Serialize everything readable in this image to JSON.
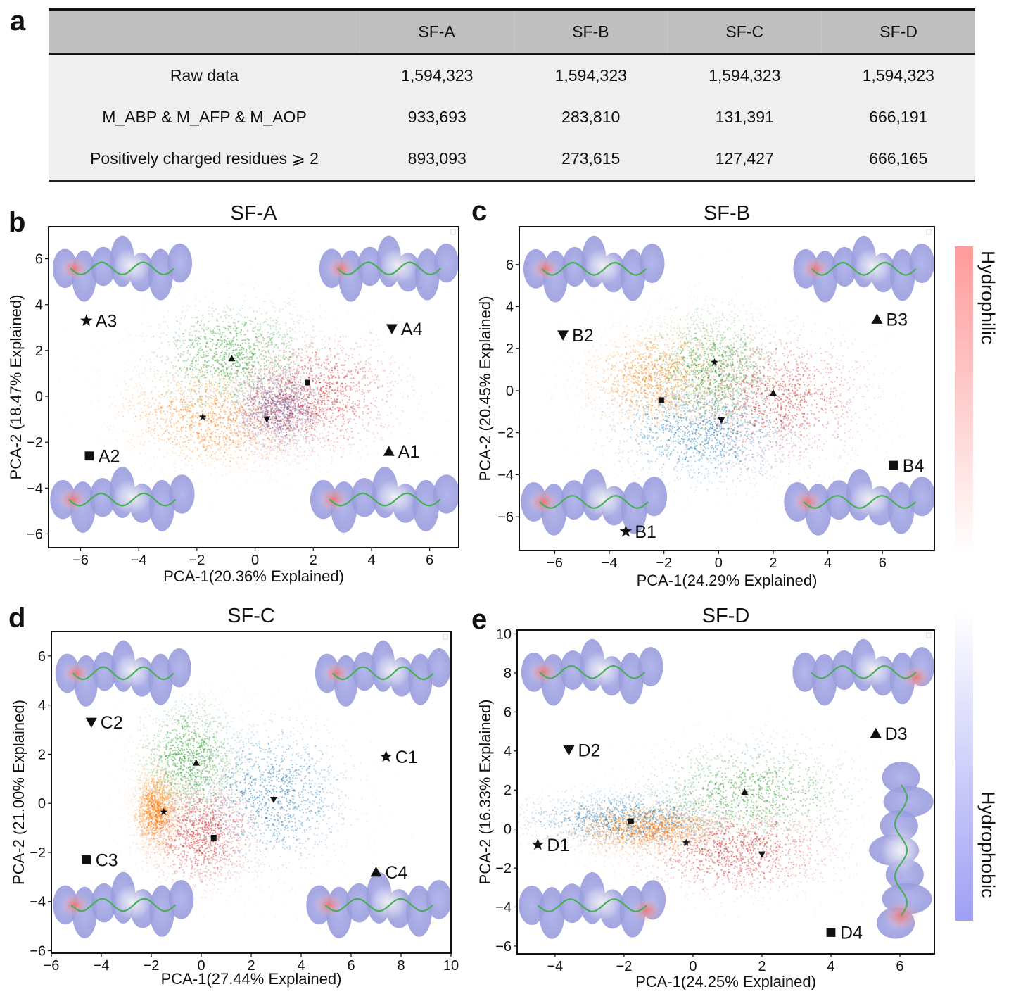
{
  "panel_letters": {
    "a": "a",
    "b": "b",
    "c": "c",
    "d": "d",
    "e": "e"
  },
  "table": {
    "columns": [
      "",
      "SF-A",
      "SF-B",
      "SF-C",
      "SF-D"
    ],
    "rows": [
      {
        "label": "Raw data",
        "values": [
          "1,594,323",
          "1,594,323",
          "1,594,323",
          "1,594,323"
        ]
      },
      {
        "label": "M_ABP & M_AFP & M_AOP",
        "values": [
          "933,693",
          "283,810",
          "131,391",
          "666,191"
        ]
      },
      {
        "label": "Positively charged residues ⩾ 2",
        "values": [
          "893,093",
          "273,615",
          "127,427",
          "666,165"
        ]
      }
    ]
  },
  "colorbar": {
    "top_label": "Hydrophilic",
    "bottom_label": "Hydrophobic",
    "hydrophilic_color": "#ff9a9a",
    "hydrophobic_color": "#9f9ff5"
  },
  "cluster_colors": {
    "blue": "#1f77b4",
    "orange": "#ff7f0e",
    "green": "#2ca02c",
    "red": "#d62728",
    "purple": "#7a4a8a"
  },
  "surface_colors": {
    "hydrophobic": "#8c8fd6",
    "neutral": "#f2f2f2",
    "hydrophilic": "#ef6b6b",
    "backbone": "#3aa84a"
  },
  "chart_data": [
    {
      "id": "b",
      "type": "scatter",
      "title": "SF-A",
      "xlabel": "PCA-1(20.36% Explained)",
      "ylabel": "PCA-2 (18.47% Explained)",
      "xlim": [
        -7.1,
        7.0
      ],
      "ylim": [
        -6.6,
        7.4
      ],
      "xticks": [
        -6,
        -4,
        -2,
        0,
        2,
        4,
        6
      ],
      "yticks": [
        -6,
        -4,
        -2,
        0,
        2,
        4,
        6
      ],
      "grid": false,
      "clusters": [
        {
          "color": "green",
          "center": [
            -0.8,
            1.7
          ],
          "spread": [
            1.6,
            1.3
          ],
          "angle": 0.2
        },
        {
          "color": "orange",
          "center": [
            -1.6,
            -1.0
          ],
          "spread": [
            1.7,
            1.2
          ],
          "angle": -0.25
        },
        {
          "color": "purple",
          "center": [
            0.8,
            -0.6
          ],
          "spread": [
            0.9,
            1.0
          ],
          "angle": 0
        },
        {
          "color": "red",
          "center": [
            2.1,
            0.1
          ],
          "spread": [
            1.6,
            1.4
          ],
          "angle": 0.1
        }
      ],
      "centroids": [
        {
          "marker": "triangle-up",
          "x": -0.8,
          "y": 1.65
        },
        {
          "marker": "square",
          "x": 1.8,
          "y": 0.6
        },
        {
          "marker": "star",
          "x": -1.8,
          "y": -0.9
        },
        {
          "marker": "triangle-down",
          "x": 0.4,
          "y": -1.0
        }
      ],
      "annotations": [
        {
          "label": "A3",
          "marker": "star",
          "x": -5.8,
          "y": 3.3,
          "structure_corner": "top-left"
        },
        {
          "label": "A4",
          "marker": "triangle-down",
          "x": 4.7,
          "y": 2.95,
          "structure_corner": "top-right"
        },
        {
          "label": "A2",
          "marker": "square",
          "x": -5.7,
          "y": -2.6,
          "structure_corner": "bottom-left"
        },
        {
          "label": "A1",
          "marker": "triangle-up",
          "x": 4.6,
          "y": -2.4,
          "structure_corner": "bottom-right"
        }
      ]
    },
    {
      "id": "c",
      "type": "scatter",
      "title": "SF-B",
      "xlabel": "PCA-1(24.29% Explained)",
      "ylabel": "PCA-2 (20.45% Explained)",
      "xlim": [
        -7.3,
        7.9
      ],
      "ylim": [
        -7.6,
        7.8
      ],
      "xticks": [
        -6,
        -4,
        -2,
        0,
        2,
        4,
        6
      ],
      "yticks": [
        -6,
        -4,
        -2,
        0,
        2,
        4,
        6
      ],
      "grid": false,
      "clusters": [
        {
          "color": "orange",
          "center": [
            -2.3,
            0.6
          ],
          "spread": [
            1.4,
            1.4
          ],
          "angle": 0
        },
        {
          "color": "green",
          "center": [
            -0.2,
            1.0
          ],
          "spread": [
            1.3,
            1.6
          ],
          "angle": 0
        },
        {
          "color": "red",
          "center": [
            2.2,
            -0.4
          ],
          "spread": [
            1.8,
            1.7
          ],
          "angle": 0.15
        },
        {
          "color": "blue",
          "center": [
            -0.6,
            -2.0
          ],
          "spread": [
            1.9,
            1.3
          ],
          "angle": -0.2
        }
      ],
      "centroids": [
        {
          "marker": "star",
          "x": -0.15,
          "y": 1.35
        },
        {
          "marker": "triangle-up",
          "x": 2.0,
          "y": -0.1
        },
        {
          "marker": "square",
          "x": -2.1,
          "y": -0.45
        },
        {
          "marker": "triangle-down",
          "x": 0.1,
          "y": -1.4
        }
      ],
      "annotations": [
        {
          "label": "B2",
          "marker": "triangle-down",
          "x": -5.7,
          "y": 2.65,
          "structure_corner": "top-left"
        },
        {
          "label": "B3",
          "marker": "triangle-up",
          "x": 5.8,
          "y": 3.4,
          "structure_corner": "top-right"
        },
        {
          "label": "B1",
          "marker": "star",
          "x": -3.4,
          "y": -6.7,
          "structure_corner": "bottom-left"
        },
        {
          "label": "B4",
          "marker": "square",
          "x": 6.4,
          "y": -3.55,
          "structure_corner": "bottom-right"
        }
      ]
    },
    {
      "id": "d",
      "type": "scatter",
      "title": "SF-C",
      "xlabel": "PCA-1(27.44% Explained)",
      "ylabel": "PCA-2 (21.00% Explained)",
      "xlim": [
        -6,
        10
      ],
      "ylim": [
        -6.1,
        7.0
      ],
      "xticks": [
        -6,
        -4,
        -2,
        0,
        2,
        4,
        6,
        8,
        10
      ],
      "yticks": [
        -6,
        -4,
        -2,
        0,
        2,
        4,
        6
      ],
      "grid": false,
      "clusters": [
        {
          "color": "green",
          "center": [
            -0.5,
            1.8
          ],
          "spread": [
            1.1,
            1.3
          ],
          "angle": 0
        },
        {
          "color": "blue",
          "center": [
            2.8,
            0.3
          ],
          "spread": [
            1.7,
            1.6
          ],
          "angle": 0
        },
        {
          "color": "orange",
          "center": [
            -1.8,
            -0.3
          ],
          "spread": [
            0.5,
            0.9
          ],
          "angle": 0
        },
        {
          "color": "red",
          "center": [
            0.0,
            -1.2
          ],
          "spread": [
            1.2,
            1.2
          ],
          "angle": 0
        }
      ],
      "centroids": [
        {
          "marker": "triangle-up",
          "x": -0.2,
          "y": 1.65
        },
        {
          "marker": "triangle-down",
          "x": 2.9,
          "y": 0.15
        },
        {
          "marker": "star",
          "x": -1.5,
          "y": -0.35
        },
        {
          "marker": "square",
          "x": 0.5,
          "y": -1.4
        }
      ],
      "annotations": [
        {
          "label": "C2",
          "marker": "triangle-down",
          "x": -4.4,
          "y": 3.3,
          "structure_corner": "top-left"
        },
        {
          "label": "C1",
          "marker": "star",
          "x": 7.4,
          "y": 1.9,
          "structure_corner": "top-right"
        },
        {
          "label": "C3",
          "marker": "square",
          "x": -4.6,
          "y": -2.3,
          "structure_corner": "bottom-left"
        },
        {
          "label": "C4",
          "marker": "triangle-up",
          "x": 7.0,
          "y": -2.8,
          "structure_corner": "bottom-right"
        }
      ]
    },
    {
      "id": "e",
      "type": "scatter",
      "title": "SF-D",
      "xlabel": "PCA-1(24.25% Explained)",
      "ylabel": "PCA-2 (16.33% Explained)",
      "xlim": [
        -5.1,
        7.0
      ],
      "ylim": [
        -6.4,
        10.2
      ],
      "xticks": [
        -4,
        -2,
        0,
        2,
        4,
        6
      ],
      "yticks": [
        -6,
        -4,
        -2,
        0,
        2,
        4,
        6,
        8,
        10
      ],
      "grid": false,
      "clusters": [
        {
          "color": "blue",
          "center": [
            -2.0,
            0.5
          ],
          "spread": [
            1.6,
            0.8
          ],
          "angle": 0
        },
        {
          "color": "green",
          "center": [
            1.6,
            1.8
          ],
          "spread": [
            1.7,
            1.5
          ],
          "angle": 0.2
        },
        {
          "color": "orange",
          "center": [
            -1.3,
            0.0
          ],
          "spread": [
            1.3,
            0.7
          ],
          "angle": 0
        },
        {
          "color": "red",
          "center": [
            1.2,
            -1.1
          ],
          "spread": [
            1.6,
            1.2
          ],
          "angle": 0
        }
      ],
      "centroids": [
        {
          "marker": "triangle-up",
          "x": 1.5,
          "y": 1.9
        },
        {
          "marker": "square",
          "x": -1.8,
          "y": 0.4
        },
        {
          "marker": "star",
          "x": -0.2,
          "y": -0.7
        },
        {
          "marker": "triangle-down",
          "x": 2.0,
          "y": -1.3
        }
      ],
      "annotations": [
        {
          "label": "D2",
          "marker": "triangle-down",
          "x": -3.6,
          "y": 4.05,
          "structure_corner": "top-left"
        },
        {
          "label": "D3",
          "marker": "triangle-up",
          "x": 5.3,
          "y": 4.9,
          "structure_corner": "top-right"
        },
        {
          "label": "D1",
          "marker": "star",
          "x": -4.5,
          "y": -0.8,
          "structure_corner": "bottom-left"
        },
        {
          "label": "D4",
          "marker": "square",
          "x": 4.0,
          "y": -5.3,
          "structure_corner": "right-vertical"
        }
      ]
    }
  ]
}
